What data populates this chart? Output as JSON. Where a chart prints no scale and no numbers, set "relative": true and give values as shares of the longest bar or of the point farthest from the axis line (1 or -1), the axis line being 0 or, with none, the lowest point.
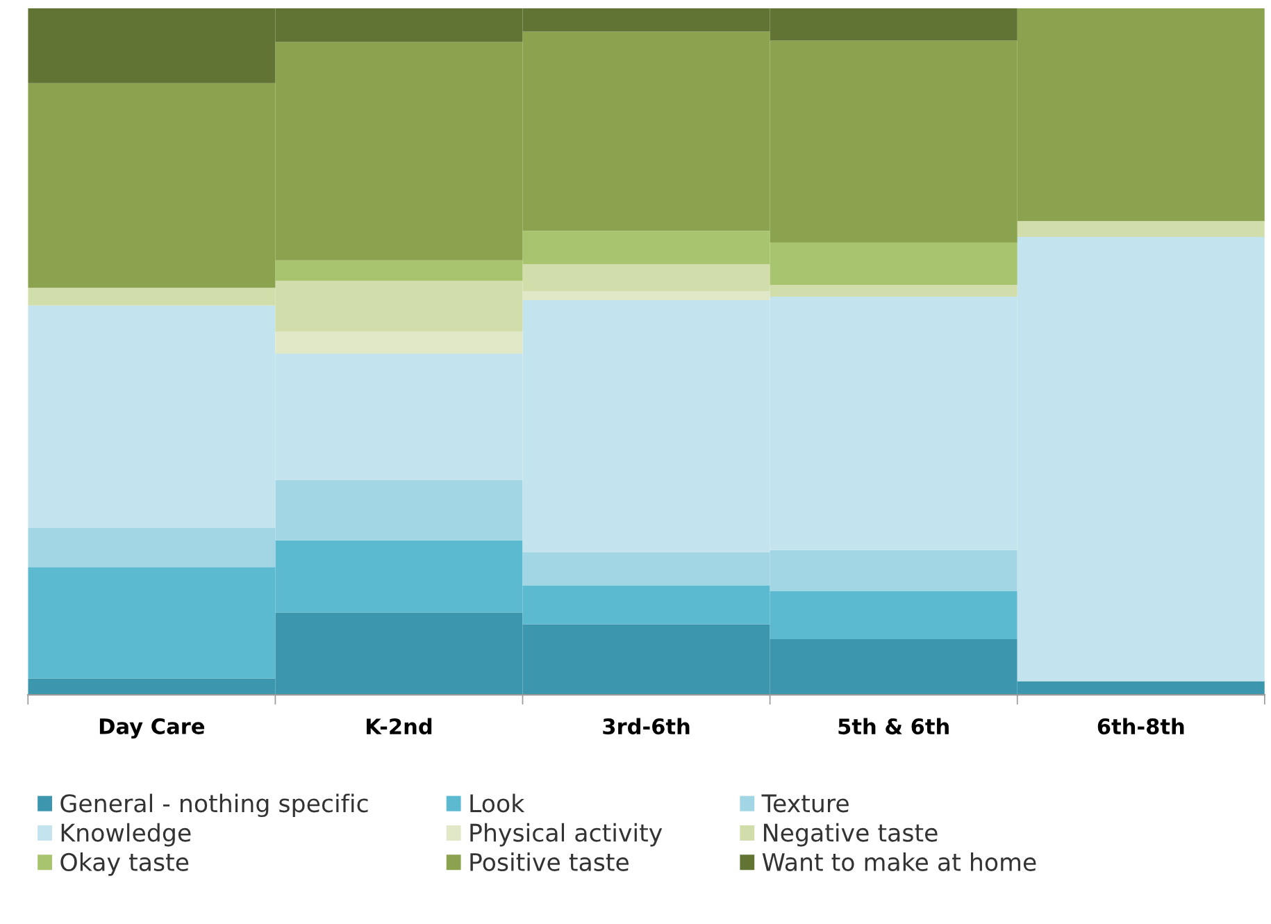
{
  "chart_data": {
    "type": "bar",
    "stacked": true,
    "relative": true,
    "legend": "bottom",
    "grid": false,
    "categories": [
      "Day Care",
      "K-2nd",
      "3rd-6th",
      "5th & 6th",
      "6th-8th"
    ],
    "series": [
      {
        "name": "General - nothing specific",
        "color": "#3c96ad",
        "values": [
          0.024,
          0.12,
          0.103,
          0.081,
          0.02
        ]
      },
      {
        "name": "Look",
        "color": "#5bb9d0",
        "values": [
          0.162,
          0.105,
          0.056,
          0.07,
          0
        ]
      },
      {
        "name": "Texture",
        "color": "#a3d6e4",
        "values": [
          0.057,
          0.088,
          0.049,
          0.06,
          0
        ]
      },
      {
        "name": "Knowledge",
        "color": "#c3e4ee",
        "values": [
          0.324,
          0.184,
          0.367,
          0.369,
          0.647
        ]
      },
      {
        "name": "Physical activity",
        "color": "#e0e8c8",
        "values": [
          0,
          0.032,
          0.013,
          0,
          0
        ]
      },
      {
        "name": "Negative taste",
        "color": "#d1ddab",
        "values": [
          0.026,
          0.074,
          0.039,
          0.017,
          0.023
        ]
      },
      {
        "name": "Okay taste",
        "color": "#a9c46e",
        "values": [
          0,
          0.03,
          0.049,
          0.062,
          0
        ]
      },
      {
        "name": "Positive taste",
        "color": "#8ba24e",
        "values": [
          0.298,
          0.318,
          0.29,
          0.294,
          0.31
        ]
      },
      {
        "name": "Want to make at home",
        "color": "#617434",
        "values": [
          0.109,
          0.049,
          0.034,
          0.047,
          0
        ]
      }
    ]
  }
}
